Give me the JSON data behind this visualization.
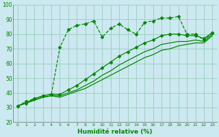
{
  "xlabel": "Humidité relative (%)",
  "background_color": "#cce8f0",
  "grid_color": "#99ccbb",
  "line_color": "#008800",
  "xlim": [
    -0.5,
    23.5
  ],
  "ylim": [
    20,
    100
  ],
  "xticks": [
    0,
    1,
    2,
    3,
    4,
    5,
    6,
    7,
    8,
    9,
    10,
    11,
    12,
    13,
    14,
    15,
    16,
    17,
    18,
    19,
    20,
    21,
    22,
    23
  ],
  "yticks": [
    20,
    30,
    40,
    50,
    60,
    70,
    80,
    90,
    100
  ],
  "series": [
    {
      "x": [
        0,
        1,
        2,
        3,
        4,
        5,
        6,
        7,
        8,
        9,
        10,
        11,
        12,
        13,
        14,
        15,
        16,
        17,
        18,
        19,
        20,
        21,
        22,
        23
      ],
      "y": [
        31,
        34,
        36,
        38,
        39,
        71,
        83,
        86,
        87,
        89,
        78,
        84,
        87,
        83,
        80,
        88,
        89,
        91,
        91,
        92,
        80,
        80,
        76,
        81
      ],
      "ls": "--",
      "marker": true
    },
    {
      "x": [
        0,
        1,
        2,
        3,
        4,
        5,
        6,
        7,
        8,
        9,
        10,
        11,
        12,
        13,
        14,
        15,
        16,
        17,
        18,
        19,
        20,
        21,
        22,
        23
      ],
      "y": [
        31,
        33,
        36,
        38,
        39,
        39,
        42,
        45,
        49,
        53,
        57,
        61,
        65,
        68,
        71,
        74,
        76,
        79,
        80,
        80,
        79,
        79,
        77,
        81
      ],
      "ls": "-",
      "marker": true
    },
    {
      "x": [
        0,
        1,
        2,
        3,
        4,
        5,
        6,
        7,
        8,
        9,
        10,
        11,
        12,
        13,
        14,
        15,
        16,
        17,
        18,
        19,
        20,
        21,
        22,
        23
      ],
      "y": [
        31,
        33,
        35,
        37,
        38,
        38,
        40,
        42,
        45,
        48,
        52,
        55,
        59,
        62,
        65,
        68,
        70,
        73,
        74,
        75,
        75,
        76,
        75,
        80
      ],
      "ls": "-",
      "marker": false
    },
    {
      "x": [
        0,
        1,
        2,
        3,
        4,
        5,
        6,
        7,
        8,
        9,
        10,
        11,
        12,
        13,
        14,
        15,
        16,
        17,
        18,
        19,
        20,
        21,
        22,
        23
      ],
      "y": [
        31,
        33,
        35,
        37,
        38,
        37,
        39,
        41,
        43,
        46,
        49,
        52,
        55,
        58,
        61,
        64,
        66,
        69,
        70,
        72,
        73,
        74,
        74,
        79
      ],
      "ls": "-",
      "marker": false
    }
  ]
}
